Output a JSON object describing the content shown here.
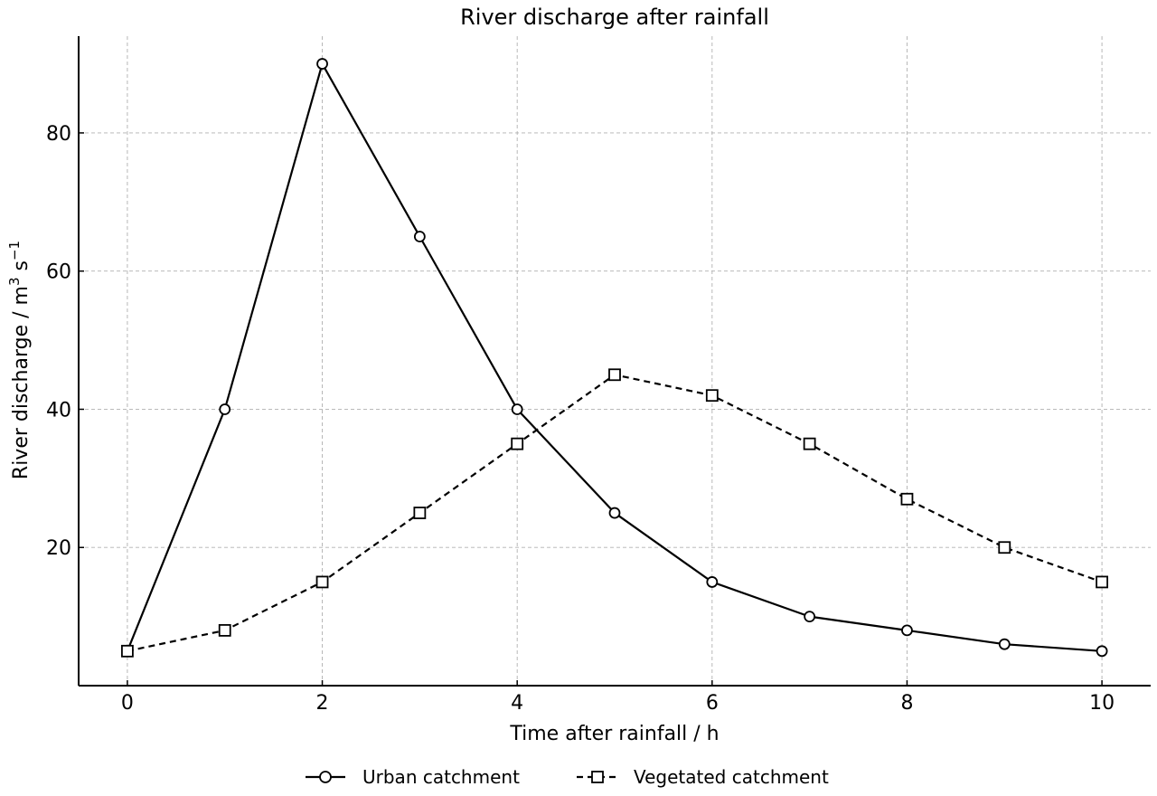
{
  "chart_data": {
    "type": "line",
    "title": "River discharge after rainfall",
    "xlabel": "Time after rainfall / h",
    "ylabel": "River discharge / m",
    "ylabel_sup1": "3",
    "ylabel_mid": " s",
    "ylabel_sup2": "−1",
    "x": [
      0,
      1,
      2,
      3,
      4,
      5,
      6,
      7,
      8,
      9,
      10
    ],
    "xlim": [
      -0.5,
      10.5
    ],
    "ylim": [
      0,
      94
    ],
    "xticks": [
      0,
      2,
      4,
      6,
      8,
      10
    ],
    "yticks": [
      20,
      40,
      60,
      80
    ],
    "grid": true,
    "legend_position": "bottom-center",
    "series": [
      {
        "name": "Urban catchment",
        "marker": "circle",
        "line_style": "solid",
        "color": "#000000",
        "values": [
          5,
          40,
          90,
          65,
          40,
          25,
          15,
          10,
          8,
          6,
          5
        ]
      },
      {
        "name": "Vegetated catchment",
        "marker": "square",
        "line_style": "dashed",
        "color": "#000000",
        "values": [
          5,
          8,
          15,
          25,
          35,
          45,
          42,
          35,
          27,
          20,
          15
        ]
      }
    ]
  }
}
